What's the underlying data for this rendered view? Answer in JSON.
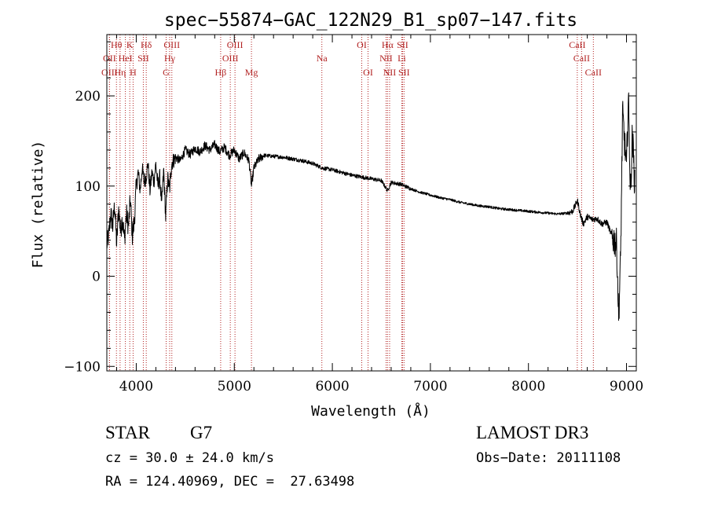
{
  "chart_data": {
    "type": "line",
    "title": "spec−55874−GAC_122N29_B1_sp07−147.fits",
    "xlabel": "Wavelength (Å)",
    "ylabel": "Flux (relative)",
    "xlim": [
      3700,
      9100
    ],
    "ylim": [
      -105,
      268
    ],
    "x_ticks": [
      4000,
      5000,
      6000,
      7000,
      8000,
      9000
    ],
    "y_ticks": [
      -100,
      0,
      100,
      200
    ],
    "x_tick_labels": [
      "4000",
      "5000",
      "6000",
      "7000",
      "8000",
      "9000"
    ],
    "y_tick_labels": [
      "−100",
      "0",
      "100",
      "200"
    ],
    "grid": false,
    "line_color": "#000000",
    "marker_color": "#b22222",
    "spectrum_points": [
      [
        3700,
        35
      ],
      [
        3720,
        45
      ],
      [
        3740,
        70
      ],
      [
        3760,
        55
      ],
      [
        3780,
        80
      ],
      [
        3800,
        35
      ],
      [
        3820,
        75
      ],
      [
        3840,
        50
      ],
      [
        3860,
        65
      ],
      [
        3880,
        40
      ],
      [
        3900,
        70
      ],
      [
        3920,
        55
      ],
      [
        3940,
        85
      ],
      [
        3960,
        45
      ],
      [
        3980,
        60
      ],
      [
        4000,
        100
      ],
      [
        4020,
        115
      ],
      [
        4040,
        95
      ],
      [
        4060,
        120
      ],
      [
        4080,
        105
      ],
      [
        4100,
        110
      ],
      [
        4120,
        125
      ],
      [
        4140,
        95
      ],
      [
        4160,
        115
      ],
      [
        4180,
        105
      ],
      [
        4200,
        125
      ],
      [
        4220,
        100
      ],
      [
        4240,
        110
      ],
      [
        4260,
        80
      ],
      [
        4280,
        118
      ],
      [
        4300,
        65
      ],
      [
        4320,
        110
      ],
      [
        4340,
        95
      ],
      [
        4360,
        125
      ],
      [
        4400,
        132
      ],
      [
        4450,
        128
      ],
      [
        4500,
        140
      ],
      [
        4550,
        135
      ],
      [
        4600,
        142
      ],
      [
        4650,
        138
      ],
      [
        4700,
        145
      ],
      [
        4750,
        140
      ],
      [
        4800,
        146
      ],
      [
        4850,
        138
      ],
      [
        4900,
        143
      ],
      [
        4950,
        134
      ],
      [
        5000,
        140
      ],
      [
        5050,
        130
      ],
      [
        5100,
        137
      ],
      [
        5150,
        128
      ],
      [
        5175,
        100
      ],
      [
        5200,
        120
      ],
      [
        5250,
        130
      ],
      [
        5300,
        134
      ],
      [
        5400,
        133
      ],
      [
        5500,
        132
      ],
      [
        5600,
        130
      ],
      [
        5700,
        128
      ],
      [
        5800,
        125
      ],
      [
        5900,
        120
      ],
      [
        6000,
        118
      ],
      [
        6100,
        115
      ],
      [
        6200,
        112
      ],
      [
        6300,
        110
      ],
      [
        6400,
        108
      ],
      [
        6500,
        106
      ],
      [
        6563,
        95
      ],
      [
        6600,
        104
      ],
      [
        6700,
        102
      ],
      [
        6800,
        97
      ],
      [
        6900,
        93
      ],
      [
        7000,
        90
      ],
      [
        7100,
        87
      ],
      [
        7200,
        85
      ],
      [
        7300,
        82
      ],
      [
        7400,
        80
      ],
      [
        7500,
        78
      ],
      [
        7600,
        77
      ],
      [
        7700,
        75
      ],
      [
        7800,
        74
      ],
      [
        7900,
        73
      ],
      [
        8000,
        72
      ],
      [
        8100,
        71
      ],
      [
        8200,
        70
      ],
      [
        8300,
        69
      ],
      [
        8400,
        70
      ],
      [
        8450,
        72
      ],
      [
        8500,
        84
      ],
      [
        8530,
        68
      ],
      [
        8560,
        58
      ],
      [
        8600,
        66
      ],
      [
        8650,
        63
      ],
      [
        8700,
        64
      ],
      [
        8750,
        58
      ],
      [
        8800,
        60
      ],
      [
        8850,
        45
      ],
      [
        8900,
        35
      ],
      [
        8920,
        -45
      ],
      [
        8940,
        20
      ],
      [
        8960,
        180
      ],
      [
        8980,
        150
      ],
      [
        9000,
        120
      ],
      [
        9020,
        200
      ],
      [
        9040,
        90
      ],
      [
        9060,
        160
      ],
      [
        9080,
        110
      ]
    ],
    "line_markers": [
      {
        "label": "Hθ",
        "x": 3798,
        "row": 1
      },
      {
        "label": "OII",
        "x": 3727,
        "row": 2
      },
      {
        "label": "OIII",
        "x": 3727,
        "row": 3
      },
      {
        "label": "HeI",
        "x": 3889,
        "row": 2
      },
      {
        "label": "Hη",
        "x": 3835,
        "row": 3
      },
      {
        "label": "K",
        "x": 3934,
        "row": 1
      },
      {
        "label": "H",
        "x": 3968,
        "row": 3
      },
      {
        "label": "SII",
        "x": 4072,
        "row": 2
      },
      {
        "label": "Hδ",
        "x": 4102,
        "row": 1
      },
      {
        "label": "OIII",
        "x": 4363,
        "row": 1
      },
      {
        "label": "Hγ",
        "x": 4341,
        "row": 2
      },
      {
        "label": "G",
        "x": 4305,
        "row": 3
      },
      {
        "label": "Hβ",
        "x": 4861,
        "row": 3
      },
      {
        "label": "OIII",
        "x": 5007,
        "row": 1
      },
      {
        "label": "OIII",
        "x": 4959,
        "row": 2
      },
      {
        "label": "Mg",
        "x": 5175,
        "row": 3
      },
      {
        "label": "Na",
        "x": 5893,
        "row": 2
      },
      {
        "label": "OI",
        "x": 6300,
        "row": 1
      },
      {
        "label": "OI",
        "x": 6364,
        "row": 3
      },
      {
        "label": "Hα",
        "x": 6563,
        "row": 1
      },
      {
        "label": "SII",
        "x": 6716,
        "row": 1
      },
      {
        "label": "NII",
        "x": 6548,
        "row": 2
      },
      {
        "label": "Li",
        "x": 6708,
        "row": 2
      },
      {
        "label": "NII",
        "x": 6584,
        "row": 3
      },
      {
        "label": "SII",
        "x": 6731,
        "row": 3
      },
      {
        "label": "CaII",
        "x": 8498,
        "row": 1
      },
      {
        "label": "CaII",
        "x": 8542,
        "row": 2
      },
      {
        "label": "CaII",
        "x": 8662,
        "row": 3
      }
    ]
  },
  "info": {
    "object_class": "STAR",
    "subclass": "G7",
    "redshift_text": "cz = 30.0 ± 24.0 km/s",
    "coords_text": "RA = 124.40969, DEC =  27.63498",
    "survey": "LAMOST DR3",
    "obs_date_text": "Obs−Date: 20111108"
  }
}
